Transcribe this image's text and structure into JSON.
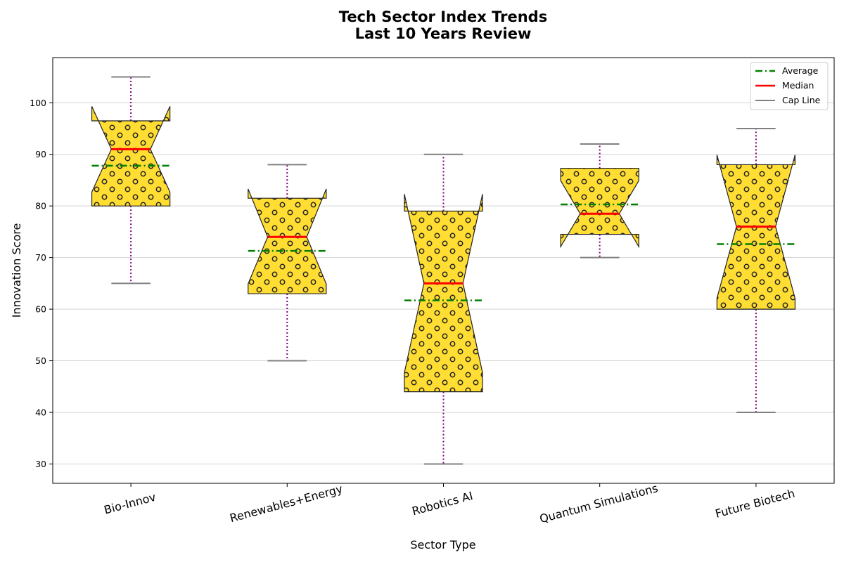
{
  "chart_data": {
    "type": "boxplot",
    "title_line1": "Tech Sector Index Trends",
    "title_line2": "Last 10 Years Review",
    "xlabel": "Sector Type",
    "ylabel": "Innovation Score",
    "ylim": [
      26.25,
      108.75
    ],
    "yticks": [
      30,
      40,
      50,
      60,
      70,
      80,
      90,
      100
    ],
    "grid": "horizontal",
    "legend_position": "top-right",
    "notched": true,
    "box_fill": "#FFDD33",
    "hatch": "circles",
    "colors": {
      "median": "#FF0000",
      "average": "#008000",
      "cap": "#808080",
      "whisker": "#800080",
      "box_edge": "#222222",
      "grid": "#d3d3d3"
    },
    "legend": [
      {
        "label": "Average",
        "style": "dashdot",
        "color": "#008000"
      },
      {
        "label": "Median",
        "style": "solid",
        "color": "#FF0000"
      },
      {
        "label": "Cap Line",
        "style": "solid",
        "color": "#808080"
      }
    ],
    "categories": [
      "Bio-Innov",
      "Renewables+Energy",
      "Robotics AI",
      "Quantum Simulations",
      "Future Biotech"
    ],
    "boxes": [
      {
        "name": "Bio-Innov",
        "whislo": 65,
        "q1": 80,
        "med": 91,
        "q3": 96.5,
        "whishi": 105,
        "mean": 87.8,
        "notch_lo": 82.7,
        "notch_hi": 99.3
      },
      {
        "name": "Renewables+Energy",
        "whislo": 50,
        "q1": 63,
        "med": 74,
        "q3": 81.5,
        "whishi": 88,
        "mean": 71.3,
        "notch_lo": 64.9,
        "notch_hi": 83.3
      },
      {
        "name": "Robotics AI",
        "whislo": 30,
        "q1": 44,
        "med": 65,
        "q3": 79,
        "whishi": 90,
        "mean": 61.7,
        "notch_lo": 47.7,
        "notch_hi": 82.3
      },
      {
        "name": "Quantum Simulations",
        "whislo": 70,
        "q1": 74.5,
        "med": 78.5,
        "q3": 87.3,
        "whishi": 92,
        "mean": 80.3,
        "notch_lo": 72.1,
        "notch_hi": 84.9
      },
      {
        "name": "Future Biotech",
        "whislo": 40,
        "q1": 60,
        "med": 76,
        "q3": 88,
        "whishi": 95,
        "mean": 72.6,
        "notch_lo": 62.1,
        "notch_hi": 89.9
      }
    ]
  }
}
